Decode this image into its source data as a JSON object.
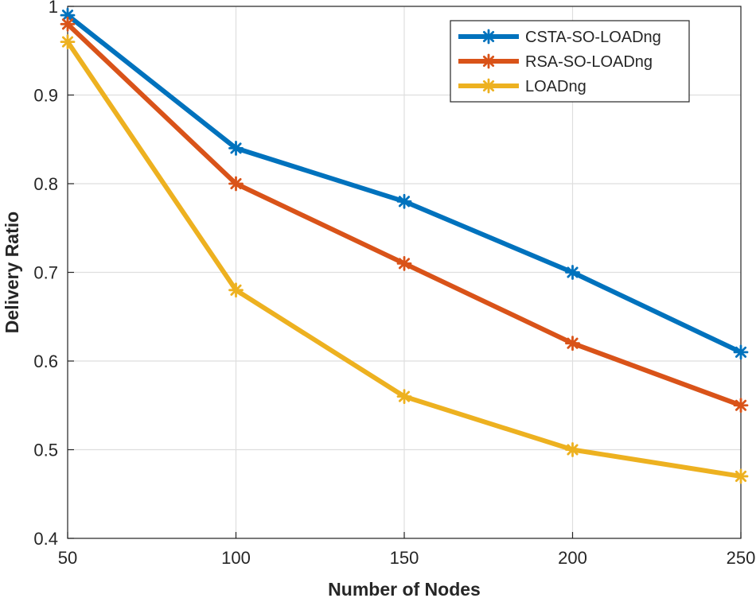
{
  "chart_data": {
    "type": "line",
    "title": "",
    "xlabel": "Number of Nodes",
    "ylabel": "Delivery Ratio",
    "x": [
      50,
      100,
      150,
      200,
      250
    ],
    "xlim": [
      50,
      250
    ],
    "ylim": [
      0.4,
      1
    ],
    "xticks": [
      50,
      100,
      150,
      200,
      250
    ],
    "xtick_labels": [
      "50",
      "100",
      "150",
      "200",
      "250"
    ],
    "yticks": [
      0.4,
      0.5,
      0.6,
      0.7,
      0.8,
      0.9,
      1.0
    ],
    "ytick_labels": [
      "0.4",
      "0.5",
      "0.6",
      "0.7",
      "0.8",
      "0.9",
      "1"
    ],
    "grid": true,
    "legend_position": "top-right",
    "series": [
      {
        "name": "CSTA-SO-LOADng",
        "color": "#0072BD",
        "marker": "asterisk",
        "values": [
          0.99,
          0.84,
          0.78,
          0.7,
          0.61
        ]
      },
      {
        "name": "RSA-SO-LOADng",
        "color": "#D95319",
        "marker": "asterisk",
        "values": [
          0.98,
          0.8,
          0.71,
          0.62,
          0.55
        ]
      },
      {
        "name": "LOADng",
        "color": "#EDB120",
        "marker": "asterisk",
        "values": [
          0.96,
          0.68,
          0.56,
          0.5,
          0.47
        ]
      }
    ]
  }
}
